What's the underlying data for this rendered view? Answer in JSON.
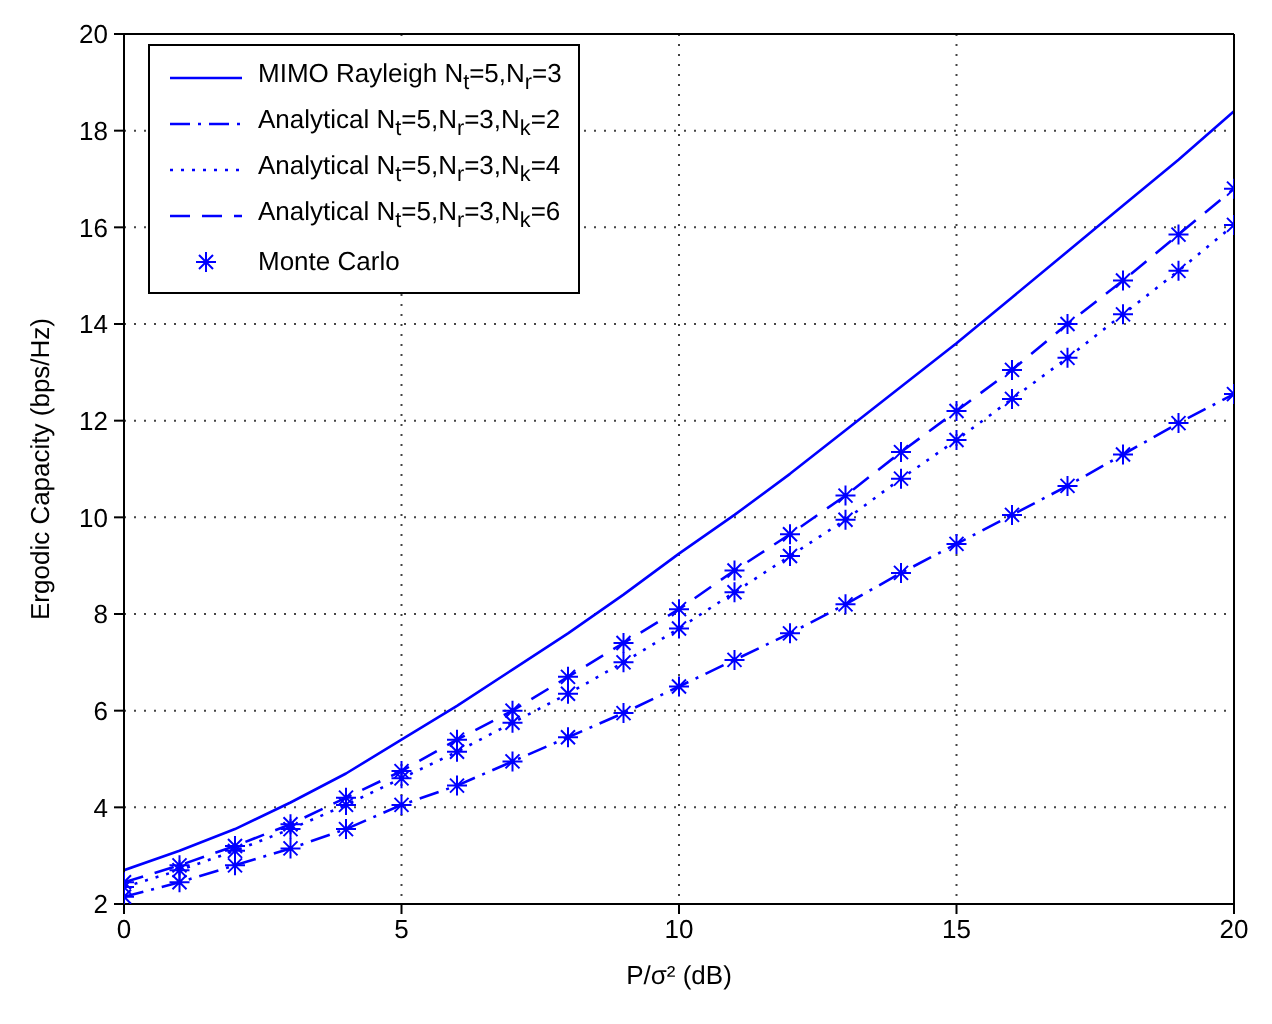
{
  "chart_data": {
    "type": "line",
    "xlabel": "P/σ² (dB)",
    "ylabel": "Ergodic Capacity (bps/Hz)",
    "xlim": [
      0,
      20
    ],
    "ylim": [
      2,
      20
    ],
    "xticks": [
      0,
      5,
      10,
      15,
      20
    ],
    "yticks": [
      2,
      4,
      6,
      8,
      10,
      12,
      14,
      16,
      18,
      20
    ],
    "grid": true,
    "legend": "top left",
    "marker": "none",
    "x": [
      0,
      1,
      2,
      3,
      4,
      5,
      6,
      7,
      8,
      9,
      10,
      11,
      12,
      13,
      14,
      15,
      16,
      17,
      18,
      19,
      20
    ],
    "series": [
      {
        "name": "MIMO Rayleigh N$_{t}$=5,N$_{r}$=3",
        "color": "#0000ff",
        "line_style": "solid",
        "values": [
          2.7,
          3.1,
          3.55,
          4.1,
          4.7,
          5.4,
          6.1,
          6.85,
          7.6,
          8.4,
          9.25,
          10.05,
          10.9,
          11.8,
          12.7,
          13.6,
          14.55,
          15.5,
          16.45,
          17.4,
          18.4
        ]
      },
      {
        "name": "Analytical N$_{t}$=5,N$_{r}$=3,N$_{k}$=2",
        "color": "#0000ff",
        "line_style": "dashdot",
        "values": [
          2.15,
          2.45,
          2.8,
          3.15,
          3.55,
          4.05,
          4.45,
          4.95,
          5.45,
          5.95,
          6.5,
          7.05,
          7.6,
          8.2,
          8.85,
          9.45,
          10.05,
          10.65,
          11.3,
          11.95,
          12.55
        ]
      },
      {
        "name": "Analytical N$_{t}$=5,N$_{r}$=3,N$_{k}$=4",
        "color": "#0000ff",
        "line_style": "dotted",
        "values": [
          2.35,
          2.7,
          3.1,
          3.55,
          4.05,
          4.6,
          5.15,
          5.75,
          6.35,
          7.0,
          7.7,
          8.45,
          9.2,
          9.95,
          10.8,
          11.6,
          12.45,
          13.3,
          14.2,
          15.1,
          16.05
        ]
      },
      {
        "name": "Analytical N$_{t}$=5,N$_{r}$=3,N$_{k}$=6",
        "color": "#0000ff",
        "line_style": "dashed",
        "values": [
          2.45,
          2.8,
          3.2,
          3.65,
          4.2,
          4.75,
          5.4,
          6.0,
          6.7,
          7.4,
          8.1,
          8.9,
          9.65,
          10.45,
          11.35,
          12.2,
          13.05,
          14.0,
          14.9,
          15.85,
          16.8
        ]
      },
      {
        "name": "Monte Carlo",
        "type": "scatter",
        "marker": "cross",
        "color": "#0000ff",
        "x": [
          0,
          1,
          2,
          3,
          4,
          5,
          6,
          7,
          8,
          9,
          10,
          11,
          12,
          13,
          14,
          15,
          16,
          17,
          18,
          19,
          20,
          0,
          1,
          2,
          3,
          4,
          5,
          6,
          7,
          8,
          9,
          10,
          11,
          12,
          13,
          14,
          15,
          16,
          17,
          18,
          19,
          20,
          0,
          1,
          2,
          3,
          4,
          5,
          6,
          7,
          8,
          9,
          10,
          11,
          12,
          13,
          14,
          15,
          16,
          17,
          18,
          19,
          20
        ],
        "values": [
          2.15,
          2.45,
          2.8,
          3.15,
          3.55,
          4.05,
          4.45,
          4.95,
          5.45,
          5.95,
          6.5,
          7.05,
          7.6,
          8.2,
          8.85,
          9.45,
          10.05,
          10.65,
          11.3,
          11.95,
          12.55,
          2.35,
          2.7,
          3.1,
          3.55,
          4.05,
          4.6,
          5.15,
          5.75,
          6.35,
          7.0,
          7.7,
          8.45,
          9.2,
          9.95,
          10.8,
          11.6,
          12.45,
          13.3,
          14.2,
          15.1,
          16.05,
          2.45,
          2.8,
          3.2,
          3.65,
          4.2,
          4.75,
          5.4,
          6.0,
          6.7,
          7.4,
          8.1,
          8.9,
          9.65,
          10.45,
          11.35,
          12.2,
          13.05,
          14.0,
          14.9,
          15.85,
          16.8
        ]
      }
    ]
  }
}
